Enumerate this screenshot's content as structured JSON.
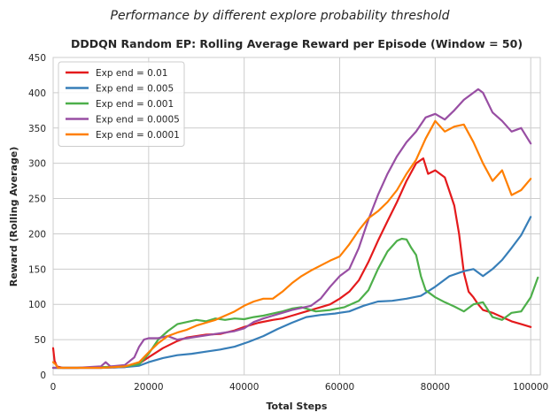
{
  "chart_data": {
    "type": "line",
    "suptitle": "Performance by different explore probability threshold",
    "title": "DDDQN Random EP: Rolling Average Reward per Episode (Window = 50)",
    "xlabel": "Total Steps",
    "ylabel": "Reward (Rolling Average)",
    "xlim": [
      0,
      102000
    ],
    "ylim": [
      0,
      450
    ],
    "xticks": [
      0,
      20000,
      40000,
      60000,
      80000,
      100000
    ],
    "yticks": [
      0,
      50,
      100,
      150,
      200,
      250,
      300,
      350,
      400,
      450
    ],
    "grid": true,
    "legend_position": "top-left",
    "series": [
      {
        "name": "Exp end = 0.01",
        "color": "#e41a1c",
        "x": [
          0,
          300,
          800,
          2000,
          5000,
          10000,
          15000,
          18000,
          20000,
          23000,
          26000,
          28000,
          30000,
          32000,
          35000,
          38000,
          40000,
          43000,
          46000,
          48000,
          50000,
          53000,
          56000,
          58000,
          60000,
          62000,
          64000,
          66000,
          68000,
          70000,
          72000,
          74000,
          76000,
          77500,
          78500,
          80000,
          82000,
          84000,
          85000,
          86000,
          87000,
          88000,
          89000,
          90000,
          92000,
          94000,
          96000,
          98000,
          100000
        ],
        "y": [
          38,
          20,
          12,
          10,
          10,
          10,
          11,
          16,
          25,
          38,
          48,
          53,
          55,
          57,
          58,
          63,
          68,
          74,
          78,
          80,
          84,
          90,
          96,
          100,
          108,
          118,
          134,
          160,
          190,
          218,
          245,
          275,
          300,
          307,
          285,
          290,
          280,
          240,
          200,
          145,
          118,
          110,
          100,
          92,
          88,
          82,
          76,
          72,
          68
        ]
      },
      {
        "name": "Exp end = 0.005",
        "color": "#377eb8",
        "x": [
          0,
          1000,
          5000,
          10000,
          15000,
          18000,
          20000,
          23000,
          26000,
          29000,
          32000,
          35000,
          38000,
          41000,
          44000,
          47000,
          50000,
          53000,
          56000,
          59000,
          62000,
          65000,
          68000,
          71000,
          74000,
          77000,
          80000,
          83000,
          86000,
          88000,
          90000,
          92000,
          94000,
          96000,
          98000,
          100000
        ],
        "y": [
          10,
          10,
          10,
          10,
          11,
          13,
          18,
          24,
          28,
          30,
          33,
          36,
          40,
          47,
          55,
          65,
          74,
          82,
          85,
          87,
          90,
          98,
          104,
          105,
          108,
          112,
          125,
          140,
          147,
          150,
          140,
          150,
          163,
          180,
          198,
          224
        ]
      },
      {
        "name": "Exp end = 0.001",
        "color": "#4daf4a",
        "x": [
          0,
          1000,
          5000,
          10000,
          15000,
          18000,
          20000,
          22000,
          24000,
          26000,
          28000,
          30000,
          32000,
          34000,
          36000,
          38000,
          40000,
          42000,
          44000,
          46000,
          48000,
          50000,
          52000,
          55000,
          58000,
          61000,
          64000,
          66000,
          68000,
          70000,
          72000,
          73000,
          74000,
          75000,
          76000,
          77000,
          78000,
          80000,
          82000,
          84000,
          86000,
          88000,
          90000,
          92000,
          94000,
          96000,
          98000,
          100000,
          101500
        ],
        "y": [
          10,
          10,
          10,
          11,
          12,
          15,
          30,
          50,
          62,
          72,
          75,
          78,
          76,
          80,
          78,
          80,
          79,
          82,
          84,
          87,
          90,
          94,
          96,
          90,
          92,
          96,
          105,
          120,
          150,
          175,
          190,
          193,
          192,
          180,
          170,
          140,
          120,
          110,
          103,
          97,
          90,
          100,
          103,
          82,
          78,
          88,
          90,
          110,
          138
        ]
      },
      {
        "name": "Exp end = 0.0005",
        "color": "#984ea3",
        "x": [
          0,
          1000,
          5000,
          10000,
          11000,
          12000,
          15000,
          17000,
          18000,
          19000,
          20000,
          22000,
          24000,
          26000,
          28000,
          30000,
          32000,
          34000,
          36000,
          38000,
          40000,
          42000,
          44000,
          46000,
          48000,
          50000,
          52000,
          54000,
          56000,
          58000,
          60000,
          62000,
          64000,
          66000,
          68000,
          70000,
          72000,
          74000,
          76000,
          78000,
          80000,
          82000,
          84000,
          86000,
          88000,
          89000,
          90000,
          92000,
          94000,
          96000,
          98000,
          100000
        ],
        "y": [
          10,
          10,
          10,
          12,
          18,
          12,
          14,
          25,
          40,
          50,
          52,
          52,
          55,
          50,
          52,
          54,
          56,
          58,
          60,
          62,
          66,
          75,
          80,
          84,
          88,
          92,
          95,
          98,
          108,
          125,
          140,
          150,
          180,
          220,
          255,
          285,
          310,
          330,
          345,
          365,
          370,
          362,
          375,
          390,
          400,
          405,
          400,
          372,
          360,
          345,
          350,
          328
        ]
      },
      {
        "name": "Exp end = 0.0001",
        "color": "#ff7f00",
        "x": [
          0,
          500,
          1000,
          5000,
          10000,
          15000,
          18000,
          20000,
          22000,
          24000,
          26000,
          28000,
          30000,
          32000,
          34000,
          36000,
          38000,
          40000,
          42000,
          44000,
          46000,
          48000,
          50000,
          52000,
          54000,
          56000,
          58000,
          60000,
          62000,
          64000,
          66000,
          68000,
          70000,
          72000,
          74000,
          76000,
          78000,
          80000,
          82000,
          84000,
          86000,
          88000,
          90000,
          92000,
          94000,
          96000,
          98000,
          100000
        ],
        "y": [
          18,
          15,
          10,
          10,
          10,
          12,
          18,
          32,
          45,
          55,
          60,
          64,
          70,
          74,
          78,
          84,
          90,
          98,
          104,
          108,
          108,
          118,
          130,
          140,
          148,
          155,
          162,
          168,
          185,
          205,
          222,
          232,
          245,
          262,
          285,
          305,
          335,
          360,
          345,
          352,
          355,
          330,
          300,
          275,
          290,
          255,
          262,
          278
        ]
      }
    ]
  }
}
